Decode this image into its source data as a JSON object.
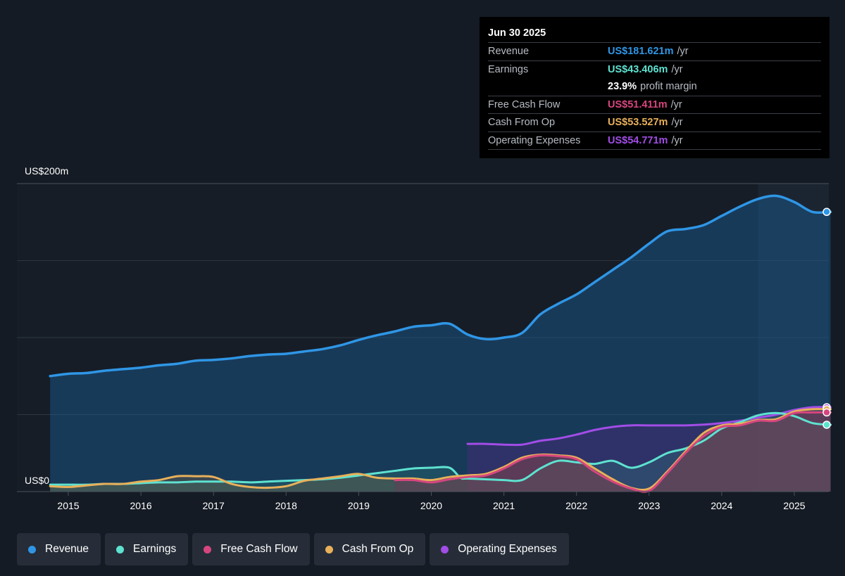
{
  "tooltip": {
    "date": "Jun 30 2025",
    "rows": [
      {
        "label": "Revenue",
        "value": "US$181.621m",
        "unit": "/yr",
        "color": "#2f96e6"
      },
      {
        "label": "Earnings",
        "value": "US$43.406m",
        "unit": "/yr",
        "color": "#5ee2d0"
      },
      {
        "margin_value": "23.9%",
        "margin_text": "profit margin"
      },
      {
        "label": "Free Cash Flow",
        "value": "US$51.411m",
        "unit": "/yr",
        "color": "#d6467e"
      },
      {
        "label": "Cash From Op",
        "value": "US$53.527m",
        "unit": "/yr",
        "color": "#e8b05a"
      },
      {
        "label": "Operating Expenses",
        "value": "US$54.771m",
        "unit": "/yr",
        "color": "#a14de6"
      }
    ]
  },
  "legend": [
    {
      "label": "Revenue",
      "color": "#2f96e6"
    },
    {
      "label": "Earnings",
      "color": "#5ee2d0"
    },
    {
      "label": "Free Cash Flow",
      "color": "#d6467e"
    },
    {
      "label": "Cash From Op",
      "color": "#e8b05a"
    },
    {
      "label": "Operating Expenses",
      "color": "#a14de6"
    }
  ],
  "chart_data": {
    "type": "area",
    "y_top_label": "US$200m",
    "y_bottom_label": "US$0",
    "ylim": [
      0,
      200
    ],
    "xlim": [
      2014.45,
      2025.5
    ],
    "x_ticks": [
      "2015",
      "2016",
      "2017",
      "2018",
      "2019",
      "2020",
      "2021",
      "2022",
      "2023",
      "2024",
      "2025"
    ],
    "grid": true,
    "legend_position": "bottom",
    "highlight_from": 2024.5,
    "series": [
      {
        "name": "Revenue",
        "color": "#2f96e6",
        "points": [
          [
            2014.75,
            75
          ],
          [
            2015,
            76.5
          ],
          [
            2015.25,
            77
          ],
          [
            2015.5,
            78.5
          ],
          [
            2015.75,
            79.5
          ],
          [
            2016,
            80.5
          ],
          [
            2016.25,
            82
          ],
          [
            2016.5,
            83
          ],
          [
            2016.75,
            85
          ],
          [
            2017,
            85.5
          ],
          [
            2017.25,
            86.5
          ],
          [
            2017.5,
            88
          ],
          [
            2017.75,
            89
          ],
          [
            2018,
            89.5
          ],
          [
            2018.25,
            91
          ],
          [
            2018.5,
            92.5
          ],
          [
            2018.75,
            95
          ],
          [
            2019,
            98.5
          ],
          [
            2019.25,
            101.5
          ],
          [
            2019.5,
            104
          ],
          [
            2019.75,
            107
          ],
          [
            2020,
            108
          ],
          [
            2020.25,
            109
          ],
          [
            2020.5,
            102
          ],
          [
            2020.75,
            99
          ],
          [
            2021,
            100
          ],
          [
            2021.25,
            103
          ],
          [
            2021.5,
            115
          ],
          [
            2021.75,
            122
          ],
          [
            2022,
            128
          ],
          [
            2022.25,
            136
          ],
          [
            2022.5,
            144
          ],
          [
            2022.75,
            152
          ],
          [
            2023,
            161
          ],
          [
            2023.25,
            169
          ],
          [
            2023.5,
            170.5
          ],
          [
            2023.75,
            173
          ],
          [
            2024,
            179
          ],
          [
            2024.25,
            185
          ],
          [
            2024.5,
            190
          ],
          [
            2024.75,
            192
          ],
          [
            2025,
            188
          ],
          [
            2025.25,
            181.6
          ],
          [
            2025.5,
            181.6
          ]
        ]
      },
      {
        "name": "Earnings",
        "color": "#5ee2d0",
        "points": [
          [
            2014.75,
            4.5
          ],
          [
            2015,
            4.5
          ],
          [
            2015.25,
            4.5
          ],
          [
            2015.5,
            5
          ],
          [
            2015.75,
            5
          ],
          [
            2016,
            5.5
          ],
          [
            2016.25,
            6
          ],
          [
            2016.5,
            6
          ],
          [
            2016.75,
            6.5
          ],
          [
            2017,
            6.5
          ],
          [
            2017.25,
            6.5
          ],
          [
            2017.5,
            6
          ],
          [
            2017.75,
            6.5
          ],
          [
            2018,
            7
          ],
          [
            2018.25,
            7.5
          ],
          [
            2018.5,
            8
          ],
          [
            2018.75,
            9
          ],
          [
            2019,
            10.5
          ],
          [
            2019.25,
            12
          ],
          [
            2019.5,
            13.5
          ],
          [
            2019.75,
            15
          ],
          [
            2020,
            15.5
          ],
          [
            2020.25,
            15.5
          ],
          [
            2020.4,
            9
          ],
          [
            2020.5,
            8.5
          ],
          [
            2020.75,
            8
          ],
          [
            2021,
            7.5
          ],
          [
            2021.25,
            7.5
          ],
          [
            2021.5,
            15
          ],
          [
            2021.75,
            20
          ],
          [
            2022,
            19
          ],
          [
            2022.25,
            18
          ],
          [
            2022.5,
            20
          ],
          [
            2022.75,
            15.5
          ],
          [
            2023,
            19
          ],
          [
            2023.25,
            25
          ],
          [
            2023.5,
            28
          ],
          [
            2023.75,
            33
          ],
          [
            2024,
            41
          ],
          [
            2024.25,
            45
          ],
          [
            2024.5,
            49.5
          ],
          [
            2024.75,
            51
          ],
          [
            2025,
            49
          ],
          [
            2025.25,
            44.5
          ],
          [
            2025.5,
            43.4
          ]
        ]
      },
      {
        "name": "Free Cash Flow",
        "color": "#d6467e",
        "points": [
          [
            2019.5,
            7.5
          ],
          [
            2019.75,
            7.5
          ],
          [
            2020,
            6
          ],
          [
            2020.25,
            8
          ],
          [
            2020.5,
            9.5
          ],
          [
            2020.75,
            10.5
          ],
          [
            2021,
            15
          ],
          [
            2021.25,
            21
          ],
          [
            2021.5,
            23.5
          ],
          [
            2021.75,
            23
          ],
          [
            2022,
            21
          ],
          [
            2022.25,
            13
          ],
          [
            2022.5,
            6.5
          ],
          [
            2022.75,
            2
          ],
          [
            2023,
            0.5
          ],
          [
            2023.25,
            12
          ],
          [
            2023.5,
            25
          ],
          [
            2023.75,
            36
          ],
          [
            2024,
            42
          ],
          [
            2024.25,
            43
          ],
          [
            2024.5,
            46
          ],
          [
            2024.75,
            46
          ],
          [
            2025,
            51
          ],
          [
            2025.25,
            51.4
          ],
          [
            2025.5,
            51.4
          ]
        ]
      },
      {
        "name": "Cash From Op",
        "color": "#e8b05a",
        "points": [
          [
            2014.75,
            3.5
          ],
          [
            2015,
            3
          ],
          [
            2015.25,
            4
          ],
          [
            2015.5,
            5
          ],
          [
            2015.75,
            5
          ],
          [
            2016,
            6.5
          ],
          [
            2016.25,
            7.5
          ],
          [
            2016.5,
            10
          ],
          [
            2016.75,
            10
          ],
          [
            2017,
            9.5
          ],
          [
            2017.25,
            5
          ],
          [
            2017.5,
            3
          ],
          [
            2017.75,
            2.5
          ],
          [
            2018,
            3.5
          ],
          [
            2018.25,
            7
          ],
          [
            2018.5,
            8.5
          ],
          [
            2018.75,
            10
          ],
          [
            2019,
            11.5
          ],
          [
            2019.25,
            9
          ],
          [
            2019.5,
            8.5
          ],
          [
            2019.75,
            8.5
          ],
          [
            2020,
            7.5
          ],
          [
            2020.25,
            9.5
          ],
          [
            2020.5,
            10.5
          ],
          [
            2020.75,
            11.5
          ],
          [
            2021,
            16
          ],
          [
            2021.25,
            22
          ],
          [
            2021.5,
            24
          ],
          [
            2021.75,
            23.5
          ],
          [
            2022,
            22
          ],
          [
            2022.25,
            15
          ],
          [
            2022.5,
            8
          ],
          [
            2022.75,
            2.5
          ],
          [
            2023,
            2
          ],
          [
            2023.25,
            13
          ],
          [
            2023.5,
            26
          ],
          [
            2023.75,
            38
          ],
          [
            2024,
            43
          ],
          [
            2024.25,
            44
          ],
          [
            2024.5,
            46.5
          ],
          [
            2024.75,
            47
          ],
          [
            2025,
            52
          ],
          [
            2025.25,
            53.5
          ],
          [
            2025.5,
            53.5
          ]
        ]
      },
      {
        "name": "Operating Expenses",
        "color": "#a14de6",
        "points": [
          [
            2020.5,
            31
          ],
          [
            2020.75,
            31
          ],
          [
            2021,
            30.5
          ],
          [
            2021.25,
            30.5
          ],
          [
            2021.5,
            33
          ],
          [
            2021.75,
            34.5
          ],
          [
            2022,
            37
          ],
          [
            2022.25,
            40
          ],
          [
            2022.5,
            42
          ],
          [
            2022.75,
            43
          ],
          [
            2023,
            43
          ],
          [
            2023.25,
            43
          ],
          [
            2023.5,
            43
          ],
          [
            2023.75,
            43.5
          ],
          [
            2024,
            44.5
          ],
          [
            2024.25,
            46
          ],
          [
            2024.5,
            48
          ],
          [
            2024.75,
            50
          ],
          [
            2025,
            53
          ],
          [
            2025.25,
            54.8
          ],
          [
            2025.5,
            54.8
          ]
        ]
      }
    ]
  }
}
